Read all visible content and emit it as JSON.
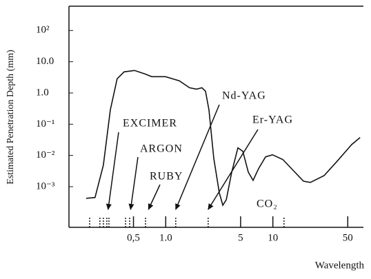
{
  "chart_data": {
    "type": "line",
    "x_label": "Wavelength",
    "y_label": "Estimated Penetration Depth (mm)",
    "xlog": true,
    "ylog": true,
    "xlim": [
      0.125,
      70
    ],
    "ylim": [
      5e-05,
      600
    ],
    "xticks": [
      {
        "value": 0.5,
        "label": "0,5"
      },
      {
        "value": 1,
        "label": "1.0"
      },
      5,
      10,
      50
    ],
    "yticks": [
      {
        "value": 100,
        "label": "10²"
      },
      {
        "value": 10,
        "label": "10.0"
      },
      {
        "value": 1,
        "label": "1.0"
      },
      {
        "value": 0.1,
        "label": "10⁻¹"
      },
      {
        "value": 0.01,
        "label": "10⁻²"
      },
      {
        "value": 0.001,
        "label": "10⁻³"
      }
    ],
    "color": "#111111",
    "x": [
      0.181,
      0.219,
      0.262,
      0.304,
      0.352,
      0.409,
      0.511,
      0.638,
      0.74,
      0.996,
      1.34,
      1.67,
      1.94,
      2.18,
      2.35,
      2.53,
      2.81,
      3.16,
      3.41,
      3.67,
      4.13,
      4.72,
      5.24,
      5.9,
      6.54,
      7.36,
      8.55,
      9.92,
      12.4,
      15.5,
      19.3,
      22.4,
      30.1,
      40.5,
      54.5,
      65.2
    ],
    "values": [
      0.000425,
      0.00045,
      0.0049,
      0.288,
      2.85,
      4.74,
      5.25,
      4.07,
      3.32,
      3.32,
      2.45,
      1.47,
      1.33,
      1.47,
      1.14,
      0.288,
      0.0081,
      0.00064,
      0.000255,
      0.00038,
      0.0029,
      0.0175,
      0.0136,
      0.0029,
      0.0016,
      0.0038,
      0.009,
      0.0105,
      0.0074,
      0.0033,
      0.0015,
      0.00137,
      0.00228,
      0.007,
      0.0225,
      0.0375
    ],
    "markers": [
      0.195,
      0.243,
      0.262,
      0.282,
      0.295,
      0.422,
      0.461,
      0.648,
      1.24,
      2.49,
      12.7
    ],
    "annotations": [
      {
        "text": "EXCIMER",
        "x": 0.29
      },
      {
        "text": "ARGON",
        "x": 0.47
      },
      {
        "text": "RUBY",
        "x": 0.69
      },
      {
        "text": "Nd-YAG",
        "x": 1.24
      },
      {
        "text": "Er-YAG",
        "x": 2.49
      },
      {
        "text": "CO₂",
        "x": 12.7
      }
    ]
  }
}
